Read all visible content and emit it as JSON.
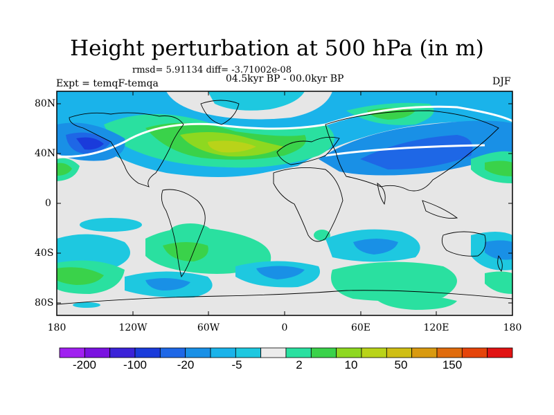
{
  "title": "Height perturbation at 500 hPa (in m)",
  "stats": "rmsd= 5.91134 diff= -3.71002e-08",
  "period": "04.5kyr BP - 00.0kyr BP",
  "experiment": "Expt = temqF-temqa",
  "season": "DJF",
  "map": {
    "lat_labels": [
      "80N",
      "40N",
      "0",
      "40S",
      "80S"
    ],
    "lon_labels": [
      "180",
      "120W",
      "60W",
      "0",
      "60E",
      "120E",
      "180"
    ],
    "background_color": "#e6e6e6"
  },
  "colorbar": {
    "colors": [
      "#a020f0",
      "#7a12e0",
      "#3b22d8",
      "#1a3bdb",
      "#1e67e6",
      "#1990e6",
      "#1ab3ea",
      "#1ec8e0",
      "#ebebeb",
      "#2ae0a0",
      "#3ad24a",
      "#8ed820",
      "#b9d319",
      "#cfbe14",
      "#d99a10",
      "#e06b0c",
      "#e5440a",
      "#e11313"
    ],
    "labels": [
      "-200",
      "-100",
      "-20",
      "-5",
      "2",
      "10",
      "50",
      "150"
    ]
  }
}
